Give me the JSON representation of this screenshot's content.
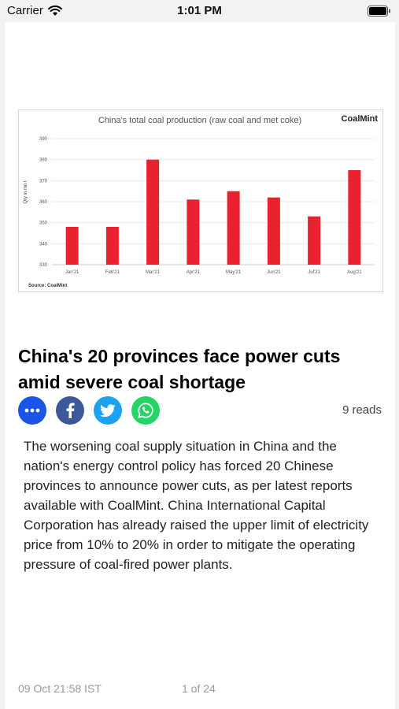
{
  "status_bar": {
    "carrier": "Carrier",
    "time": "1:01 PM"
  },
  "article": {
    "headline": "China's 20 provinces face power cuts amid severe coal shortage",
    "reads_count": "9",
    "reads_label": "reads",
    "body": "The worsening coal supply situation in China and the nation's energy control policy has forced 20 Chinese provinces to announce power cuts, as per latest reports available with CoalMint. China International Capital Corporation has already raised the upper limit of electricity price from 10% to 20% in order to mitigate the operating pressure of coal-fired power plants.",
    "share_buttons": [
      {
        "icon": "more-icon",
        "color": "#1a55e8"
      },
      {
        "icon": "facebook-icon",
        "color": "#3b5998"
      },
      {
        "icon": "twitter-icon",
        "color": "#1da1f2"
      },
      {
        "icon": "whatsapp-icon",
        "color": "#25d366"
      }
    ]
  },
  "footer": {
    "date": "09 Oct 21:58 IST",
    "page_indicator": "1 of 24"
  },
  "chart_data": {
    "type": "bar",
    "title": "China's total coal production (raw coal and met coke)",
    "brand": "CoalMint",
    "source": "Source: CoalMint",
    "ylabel": "Qty in mn t",
    "xlabel": "",
    "categories": [
      "Jan'21",
      "Feb'21",
      "Mar'21",
      "Apr'21",
      "May'21",
      "Jun'21",
      "Jul'21",
      "Aug'21"
    ],
    "values": [
      348,
      348,
      380,
      361,
      365,
      362,
      353,
      375
    ],
    "ylim": [
      330,
      390
    ],
    "yticks": [
      330,
      340,
      350,
      360,
      370,
      380,
      390
    ],
    "grid": true,
    "bar_color": "#e8222e"
  }
}
